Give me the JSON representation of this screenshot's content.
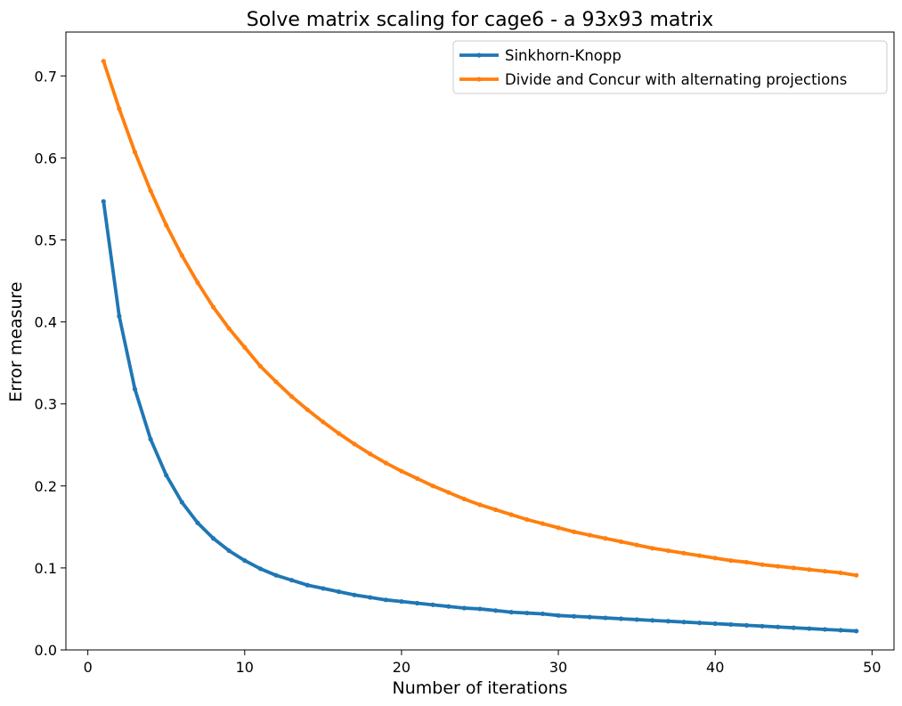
{
  "chart_data": {
    "type": "line",
    "title": "Solve matrix scaling for cage6 - a 93x93 matrix",
    "xlabel": "Number of iterations",
    "ylabel": "Error measure",
    "xlim": [
      -1.4,
      51.4
    ],
    "ylim": [
      0.0,
      0.7535
    ],
    "xticks": [
      0,
      10,
      20,
      30,
      40,
      50
    ],
    "yticks": [
      0.0,
      0.1,
      0.2,
      0.3,
      0.4,
      0.5,
      0.6,
      0.7
    ],
    "xtick_labels": [
      "0",
      "10",
      "20",
      "30",
      "40",
      "50"
    ],
    "ytick_labels": [
      "0.0",
      "0.1",
      "0.2",
      "0.3",
      "0.4",
      "0.5",
      "0.6",
      "0.7"
    ],
    "grid": false,
    "legend_position": "top-right",
    "x": [
      1,
      2,
      3,
      4,
      5,
      6,
      7,
      8,
      9,
      10,
      11,
      12,
      13,
      14,
      15,
      16,
      17,
      18,
      19,
      20,
      21,
      22,
      23,
      24,
      25,
      26,
      27,
      28,
      29,
      30,
      31,
      32,
      33,
      34,
      35,
      36,
      37,
      38,
      39,
      40,
      41,
      42,
      43,
      44,
      45,
      46,
      47,
      48,
      49
    ],
    "series": [
      {
        "name": "Sinkhorn-Knopp",
        "color": "#1f77b4",
        "values": [
          0.547,
          0.407,
          0.318,
          0.257,
          0.213,
          0.18,
          0.155,
          0.136,
          0.121,
          0.109,
          0.099,
          0.091,
          0.085,
          0.079,
          0.075,
          0.071,
          0.067,
          0.064,
          0.061,
          0.059,
          0.057,
          0.055,
          0.053,
          0.051,
          0.05,
          0.048,
          0.046,
          0.045,
          0.044,
          0.042,
          0.041,
          0.04,
          0.039,
          0.038,
          0.037,
          0.036,
          0.035,
          0.034,
          0.033,
          0.032,
          0.031,
          0.03,
          0.029,
          0.028,
          0.027,
          0.026,
          0.025,
          0.024,
          0.023
        ]
      },
      {
        "name": "Divide and Concur with alternating projections",
        "color": "#ff7f0e",
        "values": [
          0.718,
          0.66,
          0.607,
          0.56,
          0.518,
          0.481,
          0.448,
          0.418,
          0.392,
          0.369,
          0.346,
          0.327,
          0.309,
          0.293,
          0.278,
          0.264,
          0.251,
          0.239,
          0.228,
          0.218,
          0.209,
          0.2,
          0.192,
          0.184,
          0.177,
          0.171,
          0.165,
          0.159,
          0.154,
          0.149,
          0.144,
          0.14,
          0.136,
          0.132,
          0.128,
          0.124,
          0.121,
          0.118,
          0.115,
          0.112,
          0.109,
          0.107,
          0.104,
          0.102,
          0.1,
          0.098,
          0.096,
          0.094,
          0.091
        ]
      }
    ]
  }
}
